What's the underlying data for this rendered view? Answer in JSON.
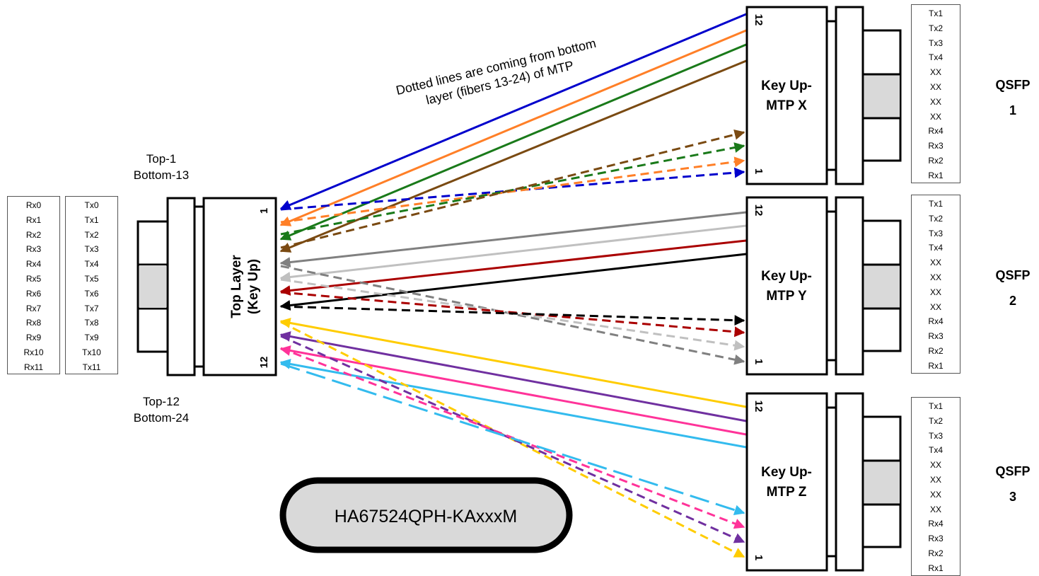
{
  "left_rx_labels": [
    "Rx0",
    "Rx1",
    "Rx2",
    "Rx3",
    "Rx4",
    "Rx5",
    "Rx6",
    "Rx7",
    "Rx8",
    "Rx9",
    "Rx10",
    "Rx11"
  ],
  "left_tx_labels": [
    "Tx0",
    "Tx1",
    "Tx2",
    "Tx3",
    "Tx4",
    "Tx5",
    "Tx6",
    "Tx7",
    "Tx8",
    "Tx9",
    "Tx10",
    "Tx11"
  ],
  "left_connector": {
    "label_line1": "Top Layer",
    "label_line2": "(Key Up)",
    "pin_top": "1",
    "pin_bottom": "12",
    "top_note_line1": "Top-1",
    "top_note_line2": "Bottom-13",
    "bottom_note_line1": "Top-12",
    "bottom_note_line2": "Bottom-24"
  },
  "note": {
    "line1": "Dotted lines are coming from bottom",
    "line2": "layer (fibers 13-24) of MTP"
  },
  "qsfp_pin_labels": [
    "Tx1",
    "Tx2",
    "Tx3",
    "Tx4",
    "XX",
    "XX",
    "XX",
    "XX",
    "Rx4",
    "Rx3",
    "Rx2",
    "Rx1"
  ],
  "right_connectors": [
    {
      "line1": "Key Up-",
      "line2": "MTP X",
      "pin_top": "12",
      "pin_bottom": "1",
      "qsfp_line1": "QSFP",
      "qsfp_line2": "1"
    },
    {
      "line1": "Key Up-",
      "line2": "MTP Y",
      "pin_top": "12",
      "pin_bottom": "1",
      "qsfp_line1": "QSFP",
      "qsfp_line2": "2"
    },
    {
      "line1": "Key Up-",
      "line2": "MTP Z",
      "pin_top": "12",
      "pin_bottom": "1",
      "qsfp_line1": "QSFP",
      "qsfp_line2": "3"
    }
  ],
  "part_number": "HA67524QPH-KAxxxM",
  "colors": {
    "blue": "#0000cc",
    "orange": "#ff7f27",
    "green": "#1a7a1a",
    "brown": "#7a4a12",
    "gray": "#808080",
    "silver": "#c0c0c0",
    "red": "#aa0000",
    "black": "#000000",
    "yellow": "#ffcc00",
    "purple": "#7030a0",
    "pink": "#ff3399",
    "cyan": "#33bbee",
    "pill_fill": "#d9d9d9",
    "key_fill": "#d9d9d9"
  },
  "fibers": [
    {
      "color": "blue",
      "style": "solid",
      "group": "X"
    },
    {
      "color": "orange",
      "style": "solid",
      "group": "X"
    },
    {
      "color": "green",
      "style": "solid",
      "group": "X"
    },
    {
      "color": "brown",
      "style": "solid",
      "group": "X"
    },
    {
      "color": "blue",
      "style": "dashed",
      "group": "X"
    },
    {
      "color": "orange",
      "style": "dashed",
      "group": "X"
    },
    {
      "color": "green",
      "style": "dashed",
      "group": "X"
    },
    {
      "color": "brown",
      "style": "dashed",
      "group": "X"
    },
    {
      "color": "gray",
      "style": "solid",
      "group": "Y"
    },
    {
      "color": "silver",
      "style": "solid",
      "group": "Y"
    },
    {
      "color": "red",
      "style": "solid",
      "group": "Y"
    },
    {
      "color": "black",
      "style": "solid",
      "group": "Y"
    },
    {
      "color": "gray",
      "style": "dashed",
      "group": "Y"
    },
    {
      "color": "silver",
      "style": "dashed",
      "group": "Y"
    },
    {
      "color": "red",
      "style": "dashed",
      "group": "Y"
    },
    {
      "color": "black",
      "style": "dashed",
      "group": "Y"
    },
    {
      "color": "yellow",
      "style": "solid",
      "group": "Z"
    },
    {
      "color": "purple",
      "style": "solid",
      "group": "Z"
    },
    {
      "color": "pink",
      "style": "solid",
      "group": "Z"
    },
    {
      "color": "cyan",
      "style": "solid",
      "group": "Z"
    },
    {
      "color": "yellow",
      "style": "dashed",
      "group": "Z"
    },
    {
      "color": "purple",
      "style": "dashed",
      "group": "Z"
    },
    {
      "color": "pink",
      "style": "dashed",
      "group": "Z"
    },
    {
      "color": "cyan",
      "style": "dashed",
      "group": "Z"
    }
  ]
}
